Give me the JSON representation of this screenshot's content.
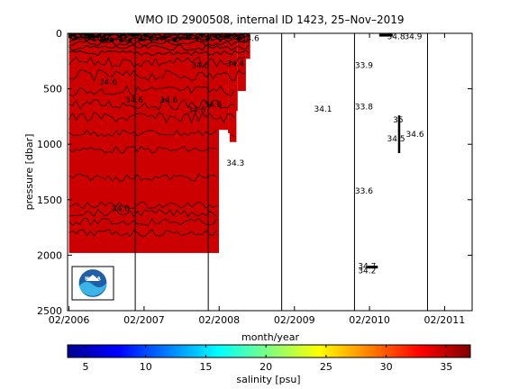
{
  "chart_data": {
    "type": "heatmap",
    "title": "WMO ID 2900508, internal ID 1423, 25–Nov–2019",
    "xlabel": "month/year",
    "ylabel": "pressure [dbar]",
    "x_ticks": [
      "02/2006",
      "02/2007",
      "02/2008",
      "02/2009",
      "02/2010",
      "02/2011"
    ],
    "y_ticks": [
      0,
      500,
      1000,
      1500,
      2000,
      2500
    ],
    "ylim": [
      0,
      2500
    ],
    "y_inverted": true,
    "xlim": [
      "2006-01-25",
      "2011-06-15"
    ],
    "vertical_gridlines": [
      "2006-12-20",
      "2007-12-10",
      "2008-12-01",
      "2009-11-20",
      "2010-11-10"
    ],
    "filled_region": {
      "segments": [
        {
          "start": "2006-02-01",
          "end": "2008-01-31",
          "top": 0,
          "bottom": 1980
        },
        {
          "start": "2008-01-31",
          "end": "2008-03-15",
          "top": 0,
          "bottom": 870
        },
        {
          "start": "2008-03-15",
          "end": "2008-05-01",
          "top": 0,
          "bottom": 980
        },
        {
          "start": "2008-05-01",
          "end": "2008-06-10",
          "top": 0,
          "bottom": 520
        },
        {
          "start": "2008-06-10",
          "end": "2008-07-01",
          "top": 0,
          "bottom": 230
        }
      ],
      "value": 34.8,
      "color": "#cc0000"
    },
    "contour_labels": [
      {
        "date": "2006-08-10",
        "p": 440,
        "text": "34.6"
      },
      {
        "date": "2006-12-15",
        "p": 600,
        "text": "34.6"
      },
      {
        "date": "2007-06-01",
        "p": 600,
        "text": "34.6"
      },
      {
        "date": "2007-10-15",
        "p": 690,
        "text": "34.6"
      },
      {
        "date": "2008-01-01",
        "p": 640,
        "text": "34.6"
      },
      {
        "date": "2007-11-01",
        "p": 290,
        "text": "34.6"
      },
      {
        "date": "2008-04-20",
        "p": 270,
        "text": "34.4"
      },
      {
        "date": "2008-07-01",
        "p": 45,
        "text": "34.6"
      },
      {
        "date": "2006-10-10",
        "p": 1580,
        "text": "34.6"
      },
      {
        "date": "2008-04-20",
        "p": 1170,
        "text": "34.3"
      },
      {
        "date": "2009-06-20",
        "p": 680,
        "text": "34.1"
      },
      {
        "date": "2010-01-05",
        "p": 290,
        "text": "33.9"
      },
      {
        "date": "2010-01-05",
        "p": 660,
        "text": "33.8"
      },
      {
        "date": "2010-01-05",
        "p": 1420,
        "text": "33.6"
      },
      {
        "date": "2010-01-20",
        "p": 2100,
        "text": "34.7"
      },
      {
        "date": "2010-01-20",
        "p": 2140,
        "text": "34.2"
      },
      {
        "date": "2010-06-10",
        "p": 30,
        "text": "34.8"
      },
      {
        "date": "2010-09-01",
        "p": 30,
        "text": "34.9"
      },
      {
        "date": "2010-06-20",
        "p": 780,
        "text": "35"
      },
      {
        "date": "2010-06-10",
        "p": 950,
        "text": "34.5"
      },
      {
        "date": "2010-09-10",
        "p": 910,
        "text": "34.6"
      }
    ],
    "colorbar": {
      "label": "salinity [psu]",
      "ticks": [
        5,
        10,
        15,
        20,
        25,
        30,
        35
      ],
      "range": [
        3.5,
        37
      ],
      "colormap": "jet"
    },
    "logo": {
      "name": "noaa-logo",
      "text": "NOAA"
    }
  }
}
